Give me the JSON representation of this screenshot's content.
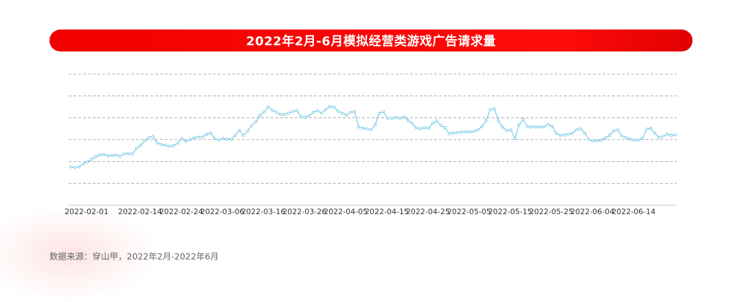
{
  "chart_data": {
    "type": "line",
    "title": "2022年2月-6月模拟经营类游戏广告请求量",
    "xlabel": "",
    "ylabel": "",
    "grid": true,
    "legend": "none",
    "y_ticks_labeled": false,
    "ylim": [
      0,
      6
    ],
    "x_tick_labels": [
      "2022-02-01",
      "2022-02-14",
      "2022-02-24",
      "2022-03-06",
      "2022-03-16",
      "2022-03-26",
      "2022-04-05",
      "2022-04-15",
      "2022-04-25",
      "2022-05-05",
      "2022-05-15",
      "2022-05-25",
      "2022-06-04",
      "2022-06-14"
    ],
    "series": [
      {
        "color": "#5bc0de",
        "x_start": "2022-02-01",
        "x_step_days": 1,
        "values": [
          1.75,
          1.72,
          1.76,
          1.88,
          1.98,
          2.1,
          2.22,
          2.3,
          2.32,
          2.26,
          2.28,
          2.3,
          2.24,
          2.35,
          2.36,
          2.35,
          2.6,
          2.75,
          2.95,
          3.1,
          3.15,
          2.85,
          2.78,
          2.75,
          2.7,
          2.72,
          2.85,
          3.05,
          2.92,
          3.0,
          3.08,
          3.12,
          3.12,
          3.24,
          3.3,
          3.05,
          2.98,
          3.05,
          3.02,
          3.02,
          3.2,
          3.42,
          3.2,
          3.4,
          3.65,
          3.82,
          4.1,
          4.28,
          4.5,
          4.35,
          4.25,
          4.15,
          4.15,
          4.22,
          4.3,
          4.32,
          4.05,
          4.02,
          4.1,
          4.25,
          4.32,
          4.22,
          4.38,
          4.52,
          4.48,
          4.3,
          4.22,
          4.12,
          4.25,
          4.28,
          3.58,
          3.52,
          3.5,
          3.45,
          3.68,
          4.22,
          4.28,
          3.98,
          3.98,
          4.02,
          3.98,
          4.05,
          3.88,
          3.75,
          3.55,
          3.5,
          3.55,
          3.52,
          3.75,
          3.85,
          3.65,
          3.55,
          3.28,
          3.3,
          3.32,
          3.35,
          3.36,
          3.35,
          3.38,
          3.45,
          3.6,
          3.88,
          4.38,
          4.42,
          3.85,
          3.58,
          3.42,
          3.45,
          3.05,
          3.68,
          3.92,
          3.6,
          3.58,
          3.58,
          3.58,
          3.57,
          3.7,
          3.62,
          3.3,
          3.2,
          3.22,
          3.25,
          3.3,
          3.45,
          3.5,
          3.3,
          3.0,
          2.95,
          2.95,
          2.98,
          3.08,
          3.2,
          3.4,
          3.45,
          3.15,
          3.1,
          3.02,
          2.98,
          2.98,
          3.05,
          3.48,
          3.52,
          3.3,
          3.1,
          3.15,
          3.25,
          3.2,
          3.22
        ]
      }
    ]
  },
  "source_text": "数据来源：穿山甲，2022年2月-2022年6月",
  "colors": {
    "title_bar": "#ff0000",
    "title_text": "#ffffff",
    "line": "#5bc0de",
    "grid": "#999999",
    "source_text": "#666666"
  }
}
